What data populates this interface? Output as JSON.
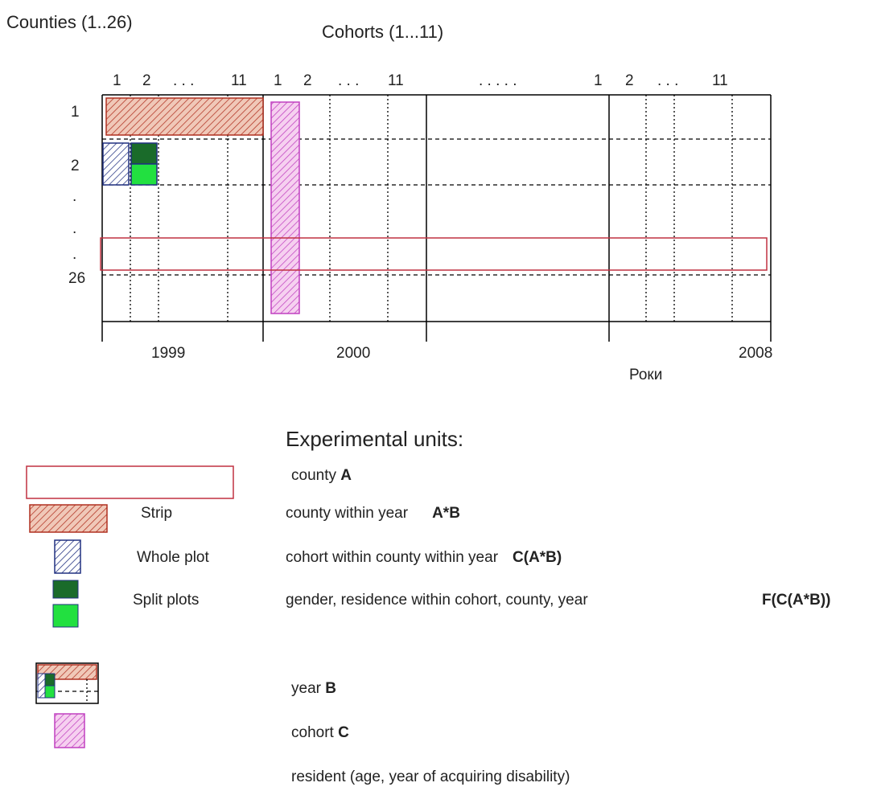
{
  "header": {
    "counties": "Counties (1..26)",
    "cohorts": "Cohorts (1...11)"
  },
  "column_labels": [
    "1",
    "2",
    ". . .",
    "11",
    "1",
    "2",
    ". . .",
    "11",
    ". . . . .",
    "1",
    "2",
    ". . .",
    "11"
  ],
  "row_labels": [
    "1",
    "2",
    ".",
    ".",
    ".",
    "26"
  ],
  "year_labels": [
    "1999",
    "2000",
    "2008"
  ],
  "axis_label": "Роки",
  "legend": {
    "title": "Experimental units:",
    "items": [
      {
        "description": "county",
        "code": "A"
      },
      {
        "label": "Strip",
        "description": "county within year",
        "code": "A*B"
      },
      {
        "label": "Whole plot",
        "description": "cohort within county within year",
        "code": "C(A*B)"
      },
      {
        "label": "Split plots",
        "description": "gender, residence within cohort, county, year",
        "code": "F(C(A*B))"
      },
      {
        "description": "year",
        "code": "B"
      },
      {
        "description": "cohort",
        "code": "C"
      },
      {
        "description": "resident (age, year of acquiring disability)"
      }
    ]
  }
}
